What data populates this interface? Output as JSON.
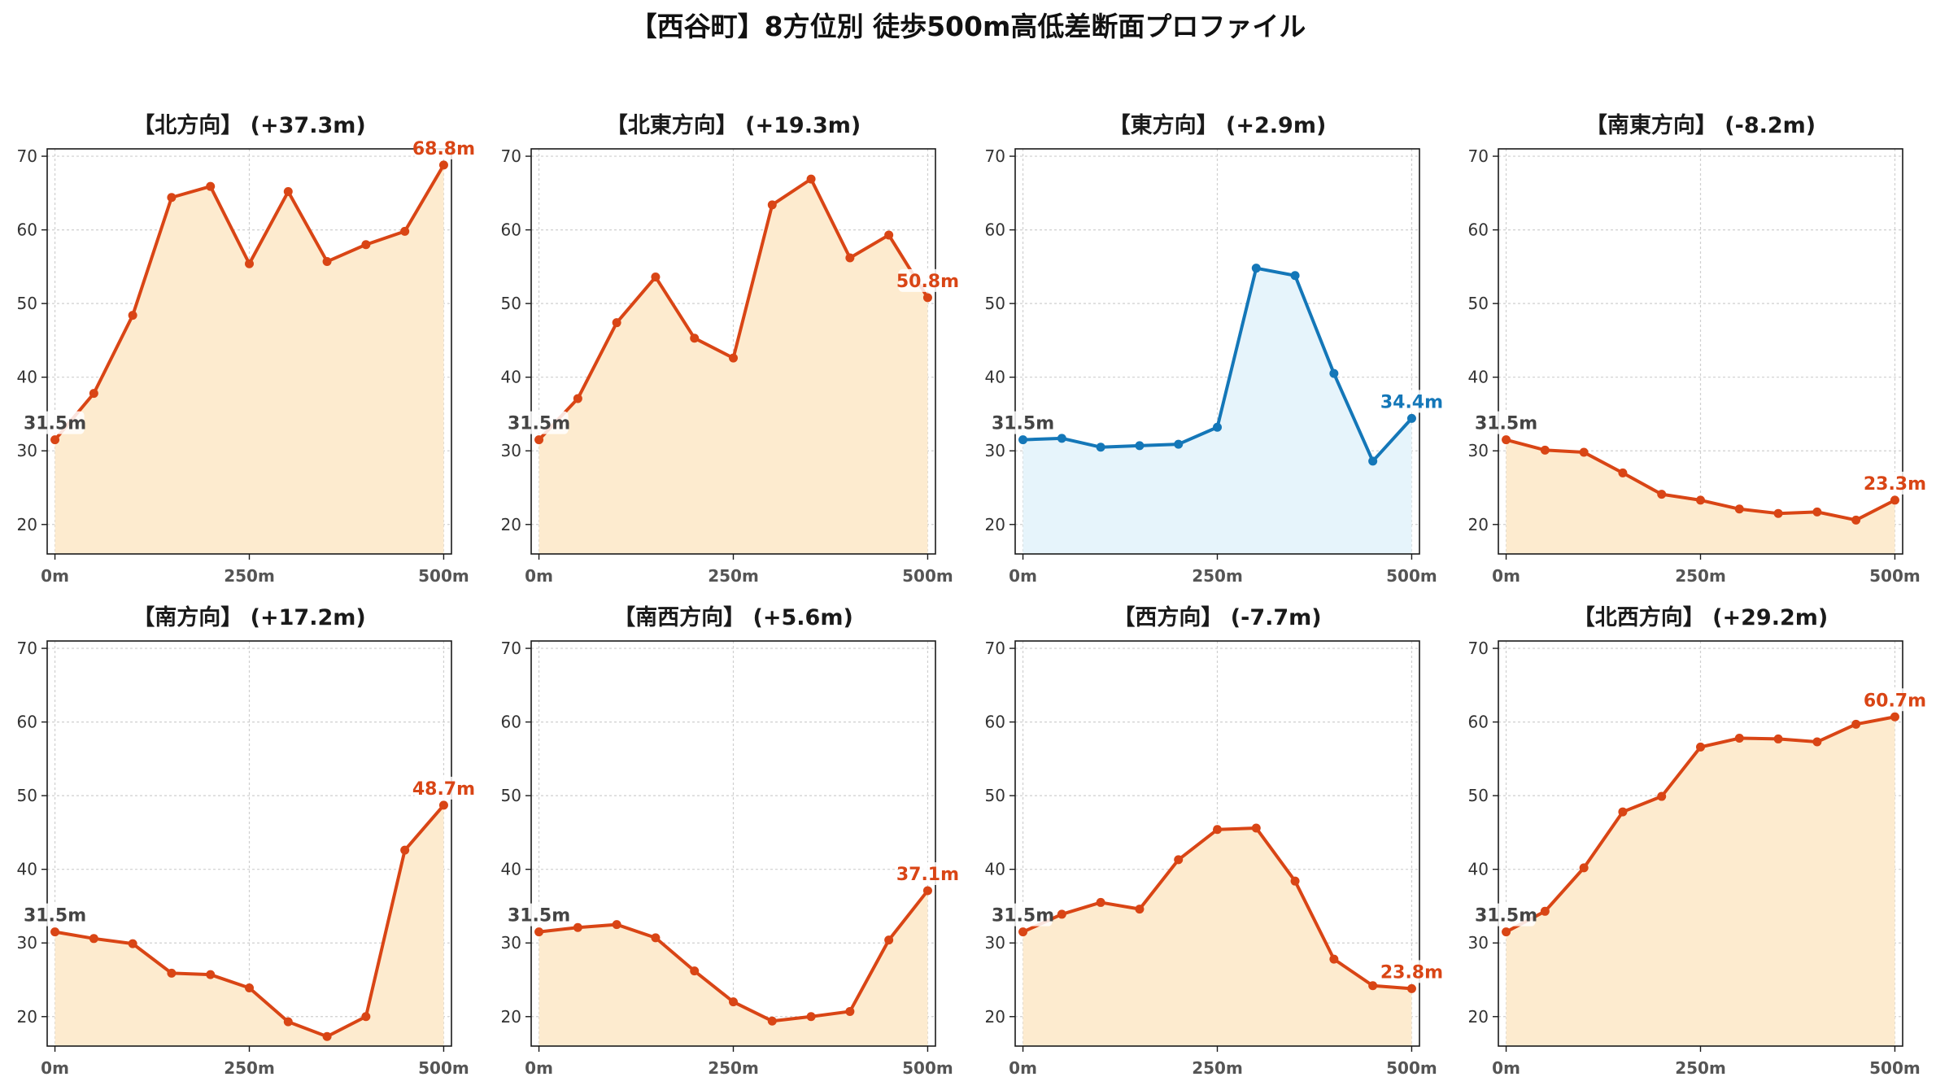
{
  "title": "【西谷町】8方位別 徒歩500m高低差断面プロファイル",
  "colors": {
    "up_line": "#d94515",
    "up_fill": "#fdebcf",
    "flat_line": "#1477b8",
    "flat_fill": "#e6f4fb",
    "grid": "#cfcfcf",
    "start_label": "#444444"
  },
  "chart_data": [
    {
      "type": "area",
      "title": "【北方向】 (+37.3m)",
      "style": "orange",
      "x": [
        0,
        50,
        100,
        150,
        200,
        250,
        300,
        350,
        400,
        450,
        500
      ],
      "y": [
        31.5,
        37.8,
        48.4,
        64.4,
        65.9,
        55.4,
        65.2,
        55.7,
        58.0,
        59.8,
        68.8
      ],
      "start_label": "31.5m",
      "end_label": "68.8m",
      "xticks": [
        "0m",
        "250m",
        "500m"
      ],
      "yticks": [
        20,
        30,
        40,
        50,
        60,
        70
      ],
      "ylim": [
        16,
        71
      ],
      "grid": true
    },
    {
      "type": "area",
      "title": "【北東方向】 (+19.3m)",
      "style": "orange",
      "x": [
        0,
        50,
        100,
        150,
        200,
        250,
        300,
        350,
        400,
        450,
        500
      ],
      "y": [
        31.5,
        37.1,
        47.4,
        53.6,
        45.3,
        42.6,
        63.4,
        66.9,
        56.2,
        59.3,
        50.8
      ],
      "start_label": "31.5m",
      "end_label": "50.8m",
      "xticks": [
        "0m",
        "250m",
        "500m"
      ],
      "yticks": [
        20,
        30,
        40,
        50,
        60,
        70
      ],
      "ylim": [
        16,
        71
      ],
      "grid": true
    },
    {
      "type": "area",
      "title": "【東方向】 (+2.9m)",
      "style": "blue",
      "x": [
        0,
        50,
        100,
        150,
        200,
        250,
        300,
        350,
        400,
        450,
        500
      ],
      "y": [
        31.5,
        31.7,
        30.5,
        30.7,
        30.9,
        33.2,
        54.8,
        53.8,
        40.5,
        28.6,
        34.4
      ],
      "start_label": "31.5m",
      "end_label": "34.4m",
      "xticks": [
        "0m",
        "250m",
        "500m"
      ],
      "yticks": [
        20,
        30,
        40,
        50,
        60,
        70
      ],
      "ylim": [
        16,
        71
      ],
      "grid": true
    },
    {
      "type": "area",
      "title": "【南東方向】 (-8.2m)",
      "style": "orange",
      "x": [
        0,
        50,
        100,
        150,
        200,
        250,
        300,
        350,
        400,
        450,
        500
      ],
      "y": [
        31.5,
        30.1,
        29.8,
        27.0,
        24.1,
        23.3,
        22.1,
        21.5,
        21.7,
        20.6,
        23.3
      ],
      "start_label": "31.5m",
      "end_label": "23.3m",
      "xticks": [
        "0m",
        "250m",
        "500m"
      ],
      "yticks": [
        20,
        30,
        40,
        50,
        60,
        70
      ],
      "ylim": [
        16,
        71
      ],
      "grid": true
    },
    {
      "type": "area",
      "title": "【南方向】 (+17.2m)",
      "style": "orange",
      "x": [
        0,
        50,
        100,
        150,
        200,
        250,
        300,
        350,
        400,
        450,
        500
      ],
      "y": [
        31.5,
        30.6,
        29.9,
        25.9,
        25.7,
        23.9,
        19.3,
        17.3,
        20.0,
        42.6,
        48.7
      ],
      "start_label": "31.5m",
      "end_label": "48.7m",
      "xticks": [
        "0m",
        "250m",
        "500m"
      ],
      "yticks": [
        20,
        30,
        40,
        50,
        60,
        70
      ],
      "ylim": [
        16,
        71
      ],
      "grid": true
    },
    {
      "type": "area",
      "title": "【南西方向】 (+5.6m)",
      "style": "orange",
      "x": [
        0,
        50,
        100,
        150,
        200,
        250,
        300,
        350,
        400,
        450,
        500
      ],
      "y": [
        31.5,
        32.1,
        32.5,
        30.7,
        26.2,
        22.0,
        19.4,
        20.0,
        20.7,
        30.4,
        37.1
      ],
      "start_label": "31.5m",
      "end_label": "37.1m",
      "xticks": [
        "0m",
        "250m",
        "500m"
      ],
      "yticks": [
        20,
        30,
        40,
        50,
        60,
        70
      ],
      "ylim": [
        16,
        71
      ],
      "grid": true
    },
    {
      "type": "area",
      "title": "【西方向】 (-7.7m)",
      "style": "orange",
      "x": [
        0,
        50,
        100,
        150,
        200,
        250,
        300,
        350,
        400,
        450,
        500
      ],
      "y": [
        31.5,
        33.9,
        35.5,
        34.6,
        41.3,
        45.4,
        45.6,
        38.4,
        27.8,
        24.2,
        23.8
      ],
      "start_label": "31.5m",
      "end_label": "23.8m",
      "xticks": [
        "0m",
        "250m",
        "500m"
      ],
      "yticks": [
        20,
        30,
        40,
        50,
        60,
        70
      ],
      "ylim": [
        16,
        71
      ],
      "grid": true
    },
    {
      "type": "area",
      "title": "【北西方向】 (+29.2m)",
      "style": "orange",
      "x": [
        0,
        50,
        100,
        150,
        200,
        250,
        300,
        350,
        400,
        450,
        500
      ],
      "y": [
        31.5,
        34.3,
        40.2,
        47.8,
        49.9,
        56.6,
        57.8,
        57.7,
        57.3,
        59.7,
        60.7
      ],
      "start_label": "31.5m",
      "end_label": "60.7m",
      "xticks": [
        "0m",
        "250m",
        "500m"
      ],
      "yticks": [
        20,
        30,
        40,
        50,
        60,
        70
      ],
      "ylim": [
        16,
        71
      ],
      "grid": true
    }
  ]
}
